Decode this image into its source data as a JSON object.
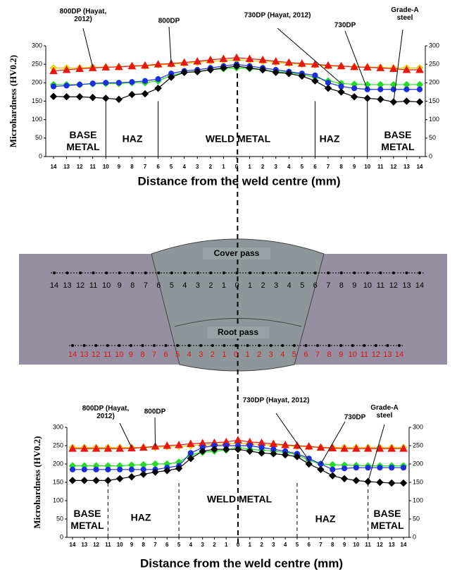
{
  "chart_data": [
    {
      "type": "line",
      "xlabel": "Distance from the weld centre (mm)",
      "ylabel": "Microhardness (HV0.2)",
      "x": [
        -14,
        -13,
        -12,
        -11,
        -10,
        -9,
        -8,
        -7,
        -6,
        -5,
        -4,
        -3,
        -2,
        -1,
        0,
        1,
        2,
        3,
        4,
        5,
        6,
        7,
        8,
        9,
        10,
        11,
        12,
        13,
        14
      ],
      "xlim": [
        -14,
        14
      ],
      "xticks": [
        {
          "value": -14,
          "label": "14"
        },
        {
          "value": -13,
          "label": "13"
        },
        {
          "value": -12,
          "label": "12"
        },
        {
          "value": -11,
          "label": "11"
        },
        {
          "value": -10,
          "label": "10"
        },
        {
          "value": -9,
          "label": "9"
        },
        {
          "value": -8,
          "label": "8"
        },
        {
          "value": -7,
          "label": "7"
        },
        {
          "value": -6,
          "label": "6"
        },
        {
          "value": -5,
          "label": "5"
        },
        {
          "value": -4,
          "label": "4"
        },
        {
          "value": -3,
          "label": "3"
        },
        {
          "value": -2,
          "label": "2"
        },
        {
          "value": -1,
          "label": "1"
        },
        0,
        1,
        2,
        3,
        4,
        5,
        6,
        7,
        8,
        9,
        10,
        11,
        12,
        13,
        14
      ],
      "ylim": [
        0,
        300
      ],
      "yticks": [
        0,
        50,
        100,
        150,
        200,
        250,
        300
      ],
      "y2lim": [
        0,
        300
      ],
      "y2ticks": [
        0,
        50,
        100,
        150,
        200,
        250,
        300
      ],
      "regions": [
        "BASE METAL",
        "HAZ",
        "WELD METAL",
        "HAZ",
        "BASE METAL"
      ],
      "series": [
        {
          "name": "800DP (Hayat, 2012)",
          "color": "#ffee00",
          "marker": "diamond",
          "values": [
            240,
            240,
            240,
            242,
            242,
            243,
            245,
            245,
            248,
            250,
            252,
            255,
            258,
            260,
            262,
            260,
            258,
            255,
            252,
            250,
            248,
            245,
            245,
            243,
            242,
            242,
            240,
            240,
            240
          ]
        },
        {
          "name": "800DP",
          "color": "#e8160c",
          "marker": "triangle",
          "values": [
            232,
            235,
            238,
            240,
            242,
            243,
            245,
            247,
            250,
            252,
            255,
            258,
            262,
            265,
            268,
            265,
            262,
            258,
            255,
            252,
            250,
            247,
            245,
            243,
            242,
            240,
            238,
            235,
            235
          ]
        },
        {
          "name": "730DP (Hayat, 2012)",
          "color": "#22dd22",
          "marker": "diamond",
          "values": [
            195,
            195,
            195,
            197,
            198,
            198,
            200,
            200,
            205,
            220,
            228,
            230,
            235,
            238,
            240,
            238,
            235,
            230,
            228,
            222,
            215,
            205,
            198,
            196,
            195,
            195,
            195,
            195,
            195
          ]
        },
        {
          "name": "730DP",
          "color": "#1a2ee0",
          "marker": "circle",
          "values": [
            190,
            192,
            195,
            198,
            200,
            200,
            202,
            205,
            210,
            225,
            232,
            235,
            240,
            245,
            250,
            245,
            240,
            235,
            230,
            225,
            220,
            200,
            190,
            185,
            182,
            182,
            182,
            182,
            182
          ]
        },
        {
          "name": "Grade-A steel",
          "color": "#000000",
          "marker": "diamond",
          "values": [
            163,
            162,
            162,
            160,
            158,
            155,
            168,
            170,
            185,
            215,
            228,
            230,
            235,
            240,
            245,
            240,
            235,
            228,
            225,
            218,
            205,
            185,
            175,
            162,
            158,
            155,
            148,
            150,
            148
          ]
        }
      ]
    },
    {
      "type": "line",
      "xlabel": "Distance from the weld centre (mm)",
      "ylabel": "Microhardness (HV0.2)",
      "x": [
        -14,
        -13,
        -12,
        -11,
        -10,
        -9,
        -8,
        -7,
        -6,
        -5,
        -4,
        -3,
        -2,
        -1,
        0,
        1,
        2,
        3,
        4,
        5,
        6,
        7,
        8,
        9,
        10,
        11,
        12,
        13,
        14
      ],
      "xlim": [
        -14,
        14
      ],
      "xticks": [
        {
          "value": -14,
          "label": "14"
        },
        {
          "value": -13,
          "label": "13"
        },
        {
          "value": -12,
          "label": "12"
        },
        {
          "value": -11,
          "label": "11"
        },
        {
          "value": -10,
          "label": "10"
        },
        {
          "value": -9,
          "label": "9"
        },
        {
          "value": -8,
          "label": "8"
        },
        {
          "value": -7,
          "label": "7"
        },
        {
          "value": -6,
          "label": "6"
        },
        {
          "value": -5,
          "label": "5"
        },
        {
          "value": -4,
          "label": "4"
        },
        {
          "value": -3,
          "label": "3"
        },
        {
          "value": -2,
          "label": "2"
        },
        {
          "value": -1,
          "label": "1"
        },
        0,
        1,
        2,
        3,
        4,
        5,
        6,
        7,
        8,
        9,
        10,
        11,
        12,
        13,
        14
      ],
      "ylim": [
        0,
        300
      ],
      "yticks": [
        0,
        50,
        100,
        150,
        200,
        250,
        300
      ],
      "y2lim": [
        0,
        300
      ],
      "y2ticks": [
        0,
        50,
        100,
        150,
        200,
        250,
        300
      ],
      "regions": [
        "BASE METAL",
        "HAZ",
        "WELD METAL",
        "HAZ",
        "BASE METAL"
      ],
      "series": [
        {
          "name": "800DP (Hayat, 2012)",
          "color": "#ffee00",
          "marker": "diamond",
          "values": [
            245,
            245,
            245,
            245,
            245,
            245,
            245,
            245,
            247,
            248,
            250,
            252,
            253,
            255,
            257,
            255,
            253,
            252,
            250,
            248,
            247,
            245,
            245,
            245,
            245,
            245,
            245,
            245,
            245
          ]
        },
        {
          "name": "800DP",
          "color": "#e8160c",
          "marker": "triangle",
          "values": [
            242,
            242,
            242,
            242,
            242,
            243,
            245,
            248,
            250,
            252,
            255,
            257,
            258,
            260,
            265,
            260,
            258,
            255,
            252,
            250,
            248,
            245,
            243,
            242,
            242,
            242,
            242,
            242,
            242
          ]
        },
        {
          "name": "730DP (Hayat, 2012)",
          "color": "#22dd22",
          "marker": "diamond",
          "values": [
            195,
            195,
            195,
            195,
            195,
            197,
            198,
            200,
            200,
            205,
            225,
            232,
            235,
            238,
            245,
            240,
            238,
            235,
            232,
            225,
            210,
            200,
            198,
            197,
            196,
            195,
            195,
            195,
            195
          ]
        },
        {
          "name": "730DP",
          "color": "#1a2ee0",
          "marker": "circle",
          "values": [
            185,
            185,
            185,
            185,
            185,
            185,
            185,
            185,
            190,
            195,
            230,
            245,
            250,
            250,
            250,
            250,
            245,
            240,
            235,
            228,
            215,
            200,
            185,
            188,
            190,
            190,
            190,
            190,
            190
          ]
        },
        {
          "name": "Grade-A steel",
          "color": "#000000",
          "marker": "diamond",
          "values": [
            155,
            155,
            155,
            155,
            160,
            165,
            172,
            178,
            182,
            188,
            215,
            235,
            240,
            240,
            240,
            235,
            230,
            228,
            225,
            220,
            200,
            185,
            168,
            160,
            155,
            152,
            150,
            148,
            148
          ]
        }
      ]
    }
  ],
  "diagram": {
    "cover_label": "Cover pass",
    "root_label": "Root pass",
    "cover_numbers": [
      14,
      13,
      12,
      11,
      10,
      9,
      8,
      7,
      6,
      5,
      4,
      3,
      2,
      1,
      0,
      1,
      2,
      3,
      4,
      5,
      6,
      7,
      8,
      9,
      10,
      11,
      12,
      13,
      14
    ],
    "root_numbers": [
      14,
      13,
      12,
      11,
      10,
      9,
      8,
      7,
      6,
      5,
      4,
      3,
      2,
      1,
      0,
      1,
      2,
      3,
      4,
      5,
      6,
      7,
      8,
      9,
      10,
      11,
      12,
      13,
      14
    ]
  }
}
